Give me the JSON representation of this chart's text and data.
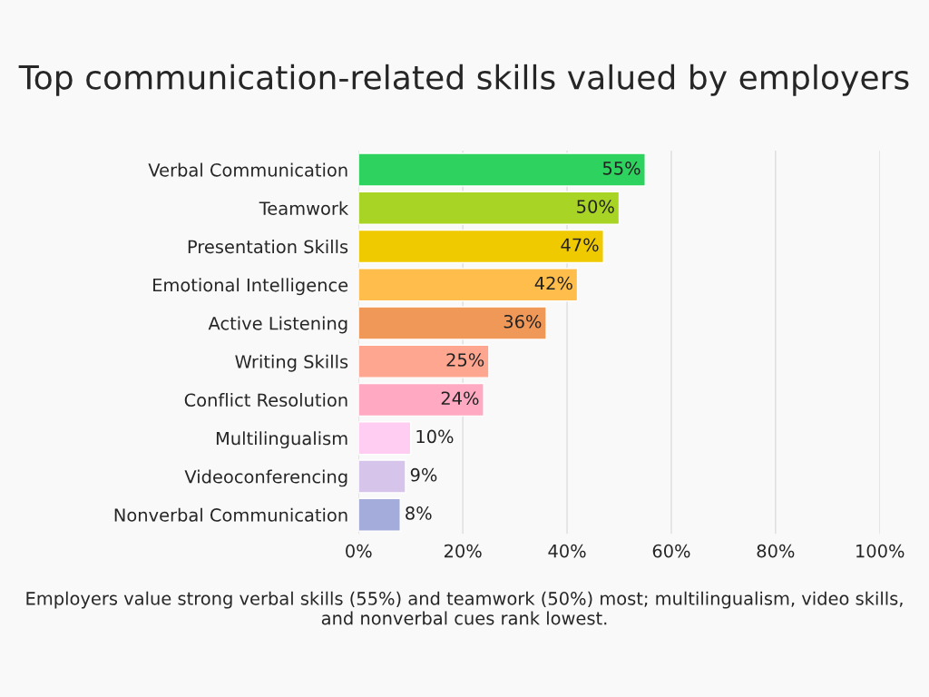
{
  "chart_data": {
    "type": "bar",
    "orientation": "horizontal",
    "title": "Top communication-related skills valued by employers",
    "categories": [
      "Verbal Communication",
      "Teamwork",
      "Presentation Skills",
      "Emotional Intelligence",
      "Active Listening",
      "Writing Skills",
      "Conflict Resolution",
      "Multilingualism",
      "Videoconferencing",
      "Nonverbal Communication"
    ],
    "values": [
      55,
      50,
      47,
      42,
      36,
      25,
      24,
      10,
      9,
      8
    ],
    "value_labels": [
      "55%",
      "50%",
      "47%",
      "42%",
      "36%",
      "25%",
      "24%",
      "10%",
      "9%",
      "8%"
    ],
    "colors": [
      "#2ed25f",
      "#a8d425",
      "#f0ca00",
      "#ffbe4c",
      "#f09858",
      "#ffa690",
      "#ffaac2",
      "#ffcdf2",
      "#d6c4ea",
      "#a3acdb"
    ],
    "xlim": [
      0,
      100
    ],
    "xticks": [
      {
        "value": 0,
        "label": "0%"
      },
      {
        "value": 20,
        "label": "20%"
      },
      {
        "value": 40,
        "label": "40%"
      },
      {
        "value": 60,
        "label": "60%"
      },
      {
        "value": 80,
        "label": "80%"
      },
      {
        "value": 100,
        "label": "100%"
      }
    ],
    "grid": "x",
    "annotations": [
      "Employers value strong verbal skills (55%) and teamwork (50%) most; multilingualism, video skills, and nonverbal cues rank lowest."
    ]
  }
}
